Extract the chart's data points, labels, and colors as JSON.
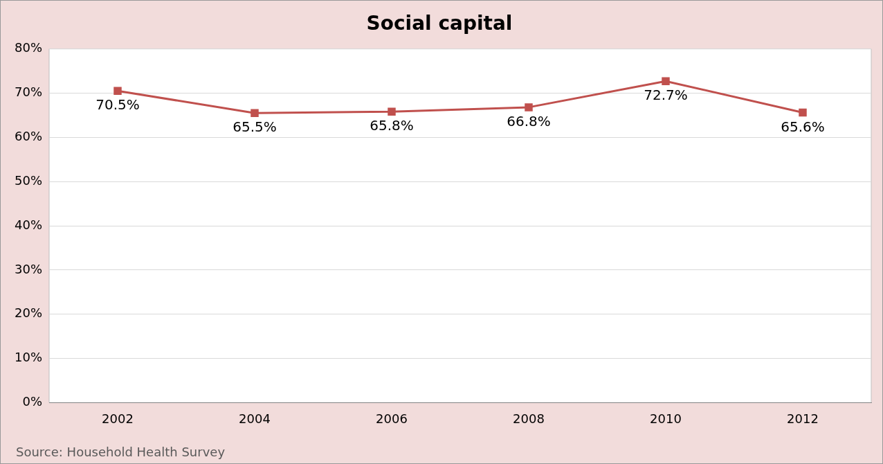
{
  "chart_data": {
    "type": "line",
    "title": "Social capital",
    "categories": [
      "2002",
      "2004",
      "2006",
      "2008",
      "2010",
      "2012"
    ],
    "series": [
      {
        "color": "#c0504d",
        "values": [
          70.5,
          65.5,
          65.8,
          66.8,
          72.7,
          65.6
        ],
        "value_labels": [
          "70.5%",
          "65.5%",
          "65.8%",
          "66.8%",
          "72.7%",
          "65.6%"
        ]
      }
    ],
    "ylim": [
      0,
      80
    ],
    "yticks": [
      {
        "value": 0,
        "label": "0%"
      },
      {
        "value": 10,
        "label": "10%"
      },
      {
        "value": 20,
        "label": "20%"
      },
      {
        "value": 30,
        "label": "30%"
      },
      {
        "value": 40,
        "label": "40%"
      },
      {
        "value": 50,
        "label": "50%"
      },
      {
        "value": 60,
        "label": "60%"
      },
      {
        "value": 70,
        "label": "70%"
      },
      {
        "value": 80,
        "label": "80%"
      }
    ],
    "grid": "y",
    "legend": false,
    "marker": "square",
    "line_style": "solid",
    "annotations": [
      "Source: Household Health Survey"
    ]
  }
}
